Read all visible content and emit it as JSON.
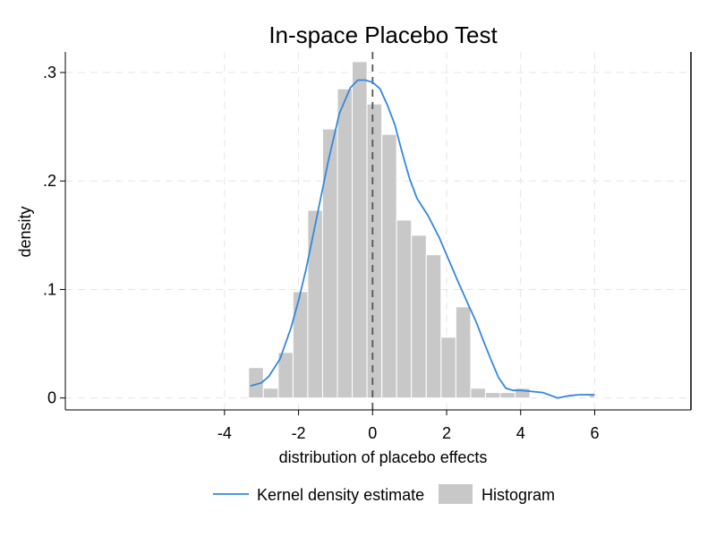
{
  "chart_data": {
    "type": "bar",
    "title": "In-space Placebo Test",
    "xlabel": "distribution of placebo effects",
    "ylabel": "density",
    "xlim": [
      -8.3,
      8.6
    ],
    "ylim": [
      -0.011,
      0.319
    ],
    "x_ticks": [
      -4,
      -2,
      0,
      2,
      4,
      6
    ],
    "x_tick_labels": [
      "-4",
      "-2",
      "0",
      "2",
      "4",
      "6"
    ],
    "y_ticks": [
      0,
      0.1,
      0.2,
      0.3
    ],
    "y_tick_labels": [
      "0",
      ".1",
      ".2",
      ".3"
    ],
    "grid": true,
    "reference_line_x": 0,
    "histogram": {
      "name": "Histogram",
      "bin_edges": [
        -3.35,
        -2.95,
        -2.55,
        -2.15,
        -1.75,
        -1.35,
        -0.95,
        -0.55,
        -0.15,
        0.25,
        0.65,
        1.05,
        1.45,
        1.85,
        2.25,
        2.65,
        3.05,
        3.45,
        3.85,
        4.25,
        4.65,
        5.05,
        5.45,
        5.85,
        6.0
      ],
      "values": [
        0.028,
        0.009,
        0.042,
        0.098,
        0.173,
        0.248,
        0.285,
        0.31,
        0.271,
        0.243,
        0.164,
        0.15,
        0.132,
        0.056,
        0.084,
        0.009,
        0.005,
        0.005,
        0.009,
        0.0,
        0.0,
        0.0,
        0.0,
        0.004
      ]
    },
    "kde": {
      "name": "Kernel density estimate",
      "color": "#3388dd",
      "x": [
        -3.3,
        -3.0,
        -2.8,
        -2.5,
        -2.2,
        -2.0,
        -1.8,
        -1.5,
        -1.2,
        -0.9,
        -0.6,
        -0.4,
        -0.2,
        0.0,
        0.2,
        0.4,
        0.6,
        0.8,
        1.0,
        1.2,
        1.5,
        1.8,
        2.0,
        2.3,
        2.6,
        2.8,
        3.0,
        3.2,
        3.4,
        3.6,
        3.8,
        4.0,
        4.3,
        4.6,
        5.0,
        5.3,
        5.6,
        6.0
      ],
      "y": [
        0.011,
        0.014,
        0.02,
        0.036,
        0.065,
        0.09,
        0.118,
        0.168,
        0.218,
        0.262,
        0.286,
        0.293,
        0.293,
        0.291,
        0.285,
        0.27,
        0.252,
        0.226,
        0.202,
        0.184,
        0.168,
        0.148,
        0.132,
        0.108,
        0.085,
        0.07,
        0.052,
        0.035,
        0.019,
        0.009,
        0.007,
        0.007,
        0.006,
        0.005,
        0.0,
        0.002,
        0.003,
        0.003
      ]
    },
    "legend_position": "bottom",
    "legend": [
      "Kernel density estimate",
      "Histogram"
    ],
    "colors": {
      "bar": "#c8c8c8",
      "kde": "#3388dd",
      "grid": "#e6e6e6",
      "refline": "#555555"
    }
  }
}
